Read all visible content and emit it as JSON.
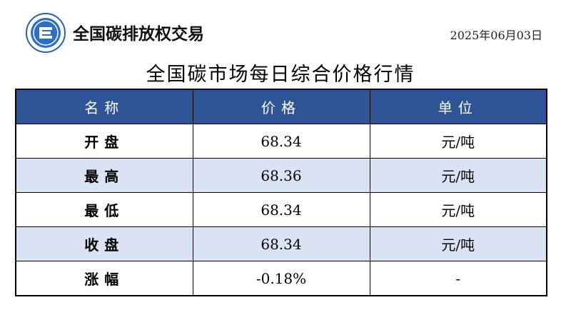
{
  "header": {
    "brand": "全国碳排放权交易",
    "date": "2025年06月03日"
  },
  "title": "全国碳市场每日综合价格行情",
  "table": {
    "columns": [
      "名称",
      "价格",
      "单位"
    ],
    "rows": [
      {
        "name": "开盘",
        "price": "68.34",
        "unit": "元/吨"
      },
      {
        "name": "最高",
        "price": "68.36",
        "unit": "元/吨"
      },
      {
        "name": "最低",
        "price": "68.34",
        "unit": "元/吨"
      },
      {
        "name": "收盘",
        "price": "68.34",
        "unit": "元/吨"
      },
      {
        "name": "涨幅",
        "price": "-0.18%",
        "unit": "-"
      }
    ]
  },
  "colors": {
    "header_bg": "#2f5597",
    "alt_row_bg": "#dae3f3"
  }
}
